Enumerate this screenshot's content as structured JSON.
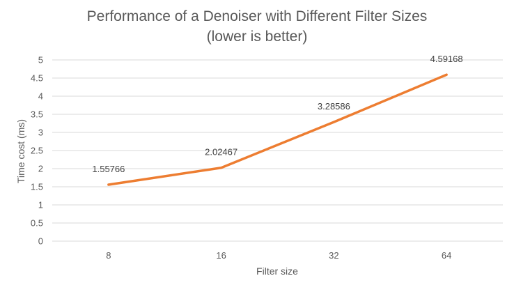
{
  "chart_data": {
    "type": "line",
    "title": "Performance of a Denoiser with Different Filter Sizes",
    "subtitle": "(lower is better)",
    "xlabel": "Filter size",
    "ylabel": "Time cost (ms)",
    "categories": [
      "8",
      "16",
      "32",
      "64"
    ],
    "series": [
      {
        "values": [
          1.55766,
          2.02467,
          3.28586,
          4.59168
        ]
      }
    ],
    "data_labels": [
      "1.55766",
      "2.02467",
      "3.28586",
      "4.59168"
    ],
    "ylim": [
      0,
      5
    ],
    "yticks": [
      "0",
      "0.5",
      "1",
      "1.5",
      "2",
      "2.5",
      "3",
      "3.5",
      "4",
      "4.5",
      "5"
    ],
    "grid": true,
    "line_color": "#ED7D31",
    "grid_color": "#D9D9D9"
  }
}
